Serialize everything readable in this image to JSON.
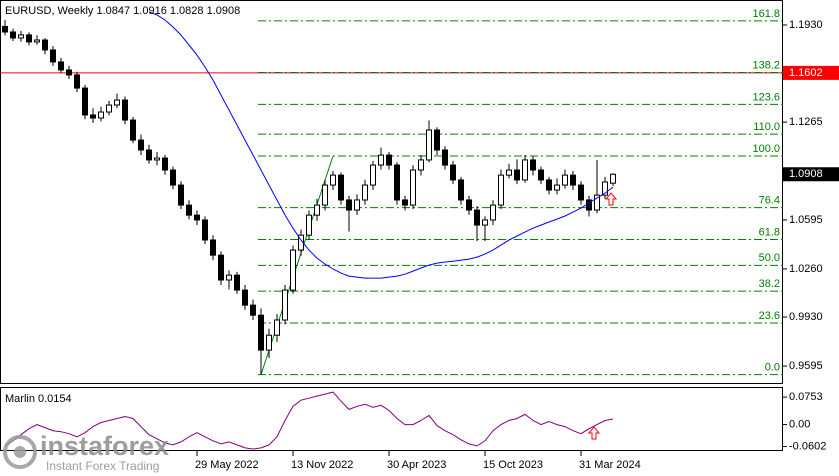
{
  "chart_data": [
    {
      "type": "candlestick",
      "title": "EURUSD, Weekly  1.0847 1.0916 1.0828 1.0908",
      "up_color": "#ffffff",
      "down_color": "#000000",
      "line_color": "#000000",
      "candles": [
        [
          1.192,
          1.1965,
          1.186,
          1.1882
        ],
        [
          1.1882,
          1.1905,
          1.182,
          1.1841
        ],
        [
          1.1841,
          1.189,
          1.1815,
          1.1862
        ],
        [
          1.1862,
          1.188,
          1.179,
          1.1814
        ],
        [
          1.1814,
          1.186,
          1.1795,
          1.1827
        ],
        [
          1.1827,
          1.184,
          1.173,
          1.1759
        ],
        [
          1.1759,
          1.1785,
          1.165,
          1.1677
        ],
        [
          1.1677,
          1.1705,
          1.16,
          1.1622
        ],
        [
          1.1622,
          1.165,
          1.156,
          1.1588
        ],
        [
          1.1588,
          1.161,
          1.147,
          1.1498
        ],
        [
          1.1498,
          1.152,
          1.1285,
          1.1314
        ],
        [
          1.1314,
          1.136,
          1.126,
          1.1293
        ],
        [
          1.1293,
          1.137,
          1.127,
          1.1334
        ],
        [
          1.1334,
          1.141,
          1.131,
          1.1382
        ],
        [
          1.1382,
          1.146,
          1.136,
          1.1416
        ],
        [
          1.1416,
          1.144,
          1.125,
          1.1279
        ],
        [
          1.1279,
          1.13,
          1.112,
          1.1142
        ],
        [
          1.1142,
          1.118,
          1.104,
          1.1074
        ],
        [
          1.1074,
          1.111,
          1.098,
          1.1006
        ],
        [
          1.1006,
          1.106,
          1.097,
          1.1019
        ],
        [
          1.1019,
          1.104,
          1.0905,
          1.0937
        ],
        [
          1.0937,
          1.096,
          1.0805,
          1.0834
        ],
        [
          1.0834,
          1.086,
          1.067,
          1.0697
        ],
        [
          1.0697,
          1.073,
          1.06,
          1.0628
        ],
        [
          1.0628,
          1.066,
          1.056,
          1.0595
        ],
        [
          1.0595,
          1.062,
          1.043,
          1.0458
        ],
        [
          1.0458,
          1.049,
          1.032,
          1.0354
        ],
        [
          1.0354,
          1.038,
          1.015,
          1.0184
        ],
        [
          1.0184,
          1.025,
          1.012,
          1.0217
        ],
        [
          1.0217,
          1.024,
          1.009,
          1.0115
        ],
        [
          1.0115,
          1.015,
          0.998,
          1.0012
        ],
        [
          1.0012,
          1.005,
          0.991,
          0.9943
        ],
        [
          0.9943,
          0.999,
          0.9536,
          0.9704
        ],
        [
          0.9704,
          0.985,
          0.965,
          0.9806
        ],
        [
          0.9806,
          0.995,
          0.976,
          0.991
        ],
        [
          0.991,
          1.015,
          0.988,
          1.0115
        ],
        [
          1.0115,
          1.042,
          1.009,
          1.0389
        ],
        [
          1.0389,
          1.053,
          1.035,
          1.0491
        ],
        [
          1.0491,
          1.066,
          1.046,
          1.0628
        ],
        [
          1.0628,
          1.074,
          1.059,
          1.0697
        ],
        [
          1.0697,
          1.087,
          1.066,
          1.0834
        ],
        [
          1.0834,
          1.093,
          1.08,
          1.0902
        ],
        [
          1.0902,
          1.092,
          1.07,
          1.0732
        ],
        [
          1.0732,
          1.076,
          1.0515,
          1.0663
        ],
        [
          1.0663,
          1.077,
          1.063,
          1.0732
        ],
        [
          1.0732,
          1.087,
          1.07,
          1.0834
        ],
        [
          1.0834,
          1.1,
          1.08,
          1.0971
        ],
        [
          1.0971,
          1.109,
          1.094,
          1.1039
        ],
        [
          1.1039,
          1.106,
          1.094,
          1.0971
        ],
        [
          1.0971,
          1.099,
          1.07,
          1.0732
        ],
        [
          1.0732,
          1.076,
          1.066,
          1.0697
        ],
        [
          1.0697,
          1.097,
          1.067,
          1.0937
        ],
        [
          1.0937,
          1.104,
          1.09,
          1.1006
        ],
        [
          1.1006,
          1.1276,
          1.099,
          1.1211
        ],
        [
          1.1211,
          1.123,
          1.104,
          1.1074
        ],
        [
          1.1074,
          1.11,
          1.094,
          1.0971
        ],
        [
          1.0971,
          1.1,
          1.084,
          1.0869
        ],
        [
          1.0869,
          1.089,
          1.07,
          1.0732
        ],
        [
          1.0732,
          1.076,
          1.063,
          1.0663
        ],
        [
          1.0663,
          1.069,
          1.045,
          1.056
        ],
        [
          1.056,
          1.062,
          1.045,
          1.0595
        ],
        [
          1.0595,
          1.073,
          1.056,
          1.0697
        ],
        [
          1.0697,
          1.094,
          1.067,
          1.0902
        ],
        [
          1.0902,
          1.098,
          1.088,
          1.0937
        ],
        [
          1.0937,
          1.101,
          1.084,
          1.0869
        ],
        [
          1.0869,
          1.104,
          1.085,
          1.1006
        ],
        [
          1.1006,
          1.103,
          1.09,
          1.0937
        ],
        [
          1.0937,
          1.096,
          1.084,
          1.0869
        ],
        [
          1.0869,
          1.089,
          1.077,
          1.08
        ],
        [
          1.08,
          1.088,
          1.077,
          1.0834
        ],
        [
          1.0834,
          1.094,
          1.081,
          1.0902
        ],
        [
          1.0902,
          1.093,
          1.08,
          1.0834
        ],
        [
          1.0834,
          1.086,
          1.07,
          1.0732
        ],
        [
          1.0732,
          1.076,
          1.062,
          1.0663
        ],
        [
          1.0663,
          1.1006,
          1.064,
          1.0765
        ],
        [
          1.0765,
          1.089,
          1.074,
          1.0855
        ],
        [
          1.0847,
          1.0916,
          1.0828,
          1.0908
        ]
      ],
      "overlay": {
        "color": "#0000ff",
        "values": [
          null,
          null,
          null,
          null,
          null,
          null,
          null,
          null,
          null,
          null,
          null,
          null,
          null,
          null,
          null,
          null,
          null,
          null,
          1.2019,
          1.1999,
          1.1964,
          1.1916,
          1.1861,
          1.1793,
          1.1724,
          1.1642,
          1.1553,
          1.145,
          1.1348,
          1.1245,
          1.1142,
          1.104,
          1.0937,
          1.0834,
          1.0732,
          1.0629,
          1.0539,
          1.0457,
          1.0389,
          1.0334,
          1.0293,
          1.0259,
          1.0231,
          1.0211,
          1.0204,
          1.0197,
          1.0197,
          1.0197,
          1.0204,
          1.0211,
          1.0224,
          1.0245,
          1.0266,
          1.0286,
          1.03,
          1.0307,
          1.0313,
          1.032,
          1.0327,
          1.0341,
          1.0361,
          1.0389,
          1.0423,
          1.0457,
          1.0485,
          1.0512,
          1.0539,
          1.056,
          1.0581,
          1.0601,
          1.0622,
          1.0649,
          1.0676,
          1.0711,
          1.0745,
          1.0779,
          1.082
        ]
      },
      "xlim": [
        -0.625,
        97.25
      ],
      "xticks": [
        {
          "value": 24,
          "label": "29 May 2022"
        },
        {
          "value": 36,
          "label": "13 Nov 2022"
        },
        {
          "value": 48,
          "label": "30 Apr 2023"
        },
        {
          "value": 60,
          "label": "15 Oct 2023"
        },
        {
          "value": 72,
          "label": "31 Mar 2024"
        }
      ],
      "ylim": [
        0.9472,
        1.2101
      ],
      "yticks": [
        {
          "value": 1.193,
          "label": "1.1930"
        },
        1.1265,
        1.0595,
        {
          "value": 1.026,
          "label": "1.0260"
        },
        {
          "value": 0.993,
          "label": "0.9930"
        },
        0.9595
      ],
      "hline": {
        "value": 1.1602,
        "color": "#ff0000"
      },
      "last_price_color": "#000000",
      "fibonacci": {
        "color": "#008000",
        "start": {
          "x": 32,
          "price": 0.9536
        },
        "end": {
          "x": 41,
          "price": 1.1033
        },
        "levels": [
          {
            "value": 0,
            "label": "0.0"
          },
          23.6,
          38.2,
          {
            "value": 50,
            "label": "50.0"
          },
          61.8,
          76.4,
          {
            "value": 100,
            "label": "100.0"
          },
          {
            "value": 110,
            "label": "110.0"
          },
          123.6,
          138.2,
          161.8
        ]
      }
    },
    {
      "type": "line",
      "title": "Marlin 0.0154",
      "color": "#800080",
      "values": [
        -0.0586,
        -0.0446,
        -0.0279,
        -0.0112,
        0.0,
        -0.0084,
        -0.0167,
        -0.0195,
        -0.0251,
        -0.0335,
        -0.0223,
        -0.0056,
        0.0056,
        0.0112,
        0.0167,
        0.0223,
        0.0167,
        -0.0056,
        -0.0279,
        -0.039,
        -0.0502,
        -0.0558,
        -0.0474,
        -0.0335,
        -0.0223,
        -0.0335,
        -0.0446,
        -0.053,
        -0.0474,
        -0.0558,
        -0.0641,
        -0.0669,
        -0.0641,
        -0.0558,
        -0.0335,
        0.0112,
        0.0502,
        0.0669,
        0.0725,
        0.0781,
        0.0837,
        0.0892,
        0.0641,
        0.0418,
        0.0502,
        0.0558,
        0.0474,
        0.053,
        0.039,
        0.0167,
        0.0,
        0.0,
        0.0112,
        0.0251,
        -0.0028,
        -0.0167,
        -0.0279,
        -0.0418,
        -0.053,
        -0.0586,
        -0.0446,
        -0.0167,
        0.0,
        0.0112,
        0.0167,
        0.0279,
        0.0112,
        0.0,
        0.0084,
        0.0,
        -0.0056,
        -0.0167,
        -0.0251,
        -0.0112,
        0.0,
        0.0112,
        0.0154
      ],
      "xlim": [
        -0.625,
        97.25
      ],
      "ylim": [
        -0.0725,
        0.1004
      ],
      "yticks": [
        0.0753,
        {
          "value": 0,
          "label": "0.00"
        },
        -0.0602
      ]
    }
  ],
  "watermark": {
    "brand": "instaforex",
    "slogan": "Instant Forex Trading"
  }
}
